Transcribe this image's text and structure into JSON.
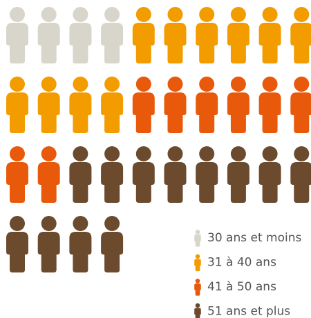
{
  "chart_data": {
    "type": "pictogram",
    "categories": [
      "30 ans et moins",
      "31 à 40 ans",
      "41 à 50 ans",
      "51 ans et plus"
    ],
    "values": [
      4,
      10,
      8,
      12
    ],
    "colors": [
      "#d8d5cb",
      "#f39c00",
      "#e8590c",
      "#6b4a2e"
    ],
    "per_row": 10
  }
}
